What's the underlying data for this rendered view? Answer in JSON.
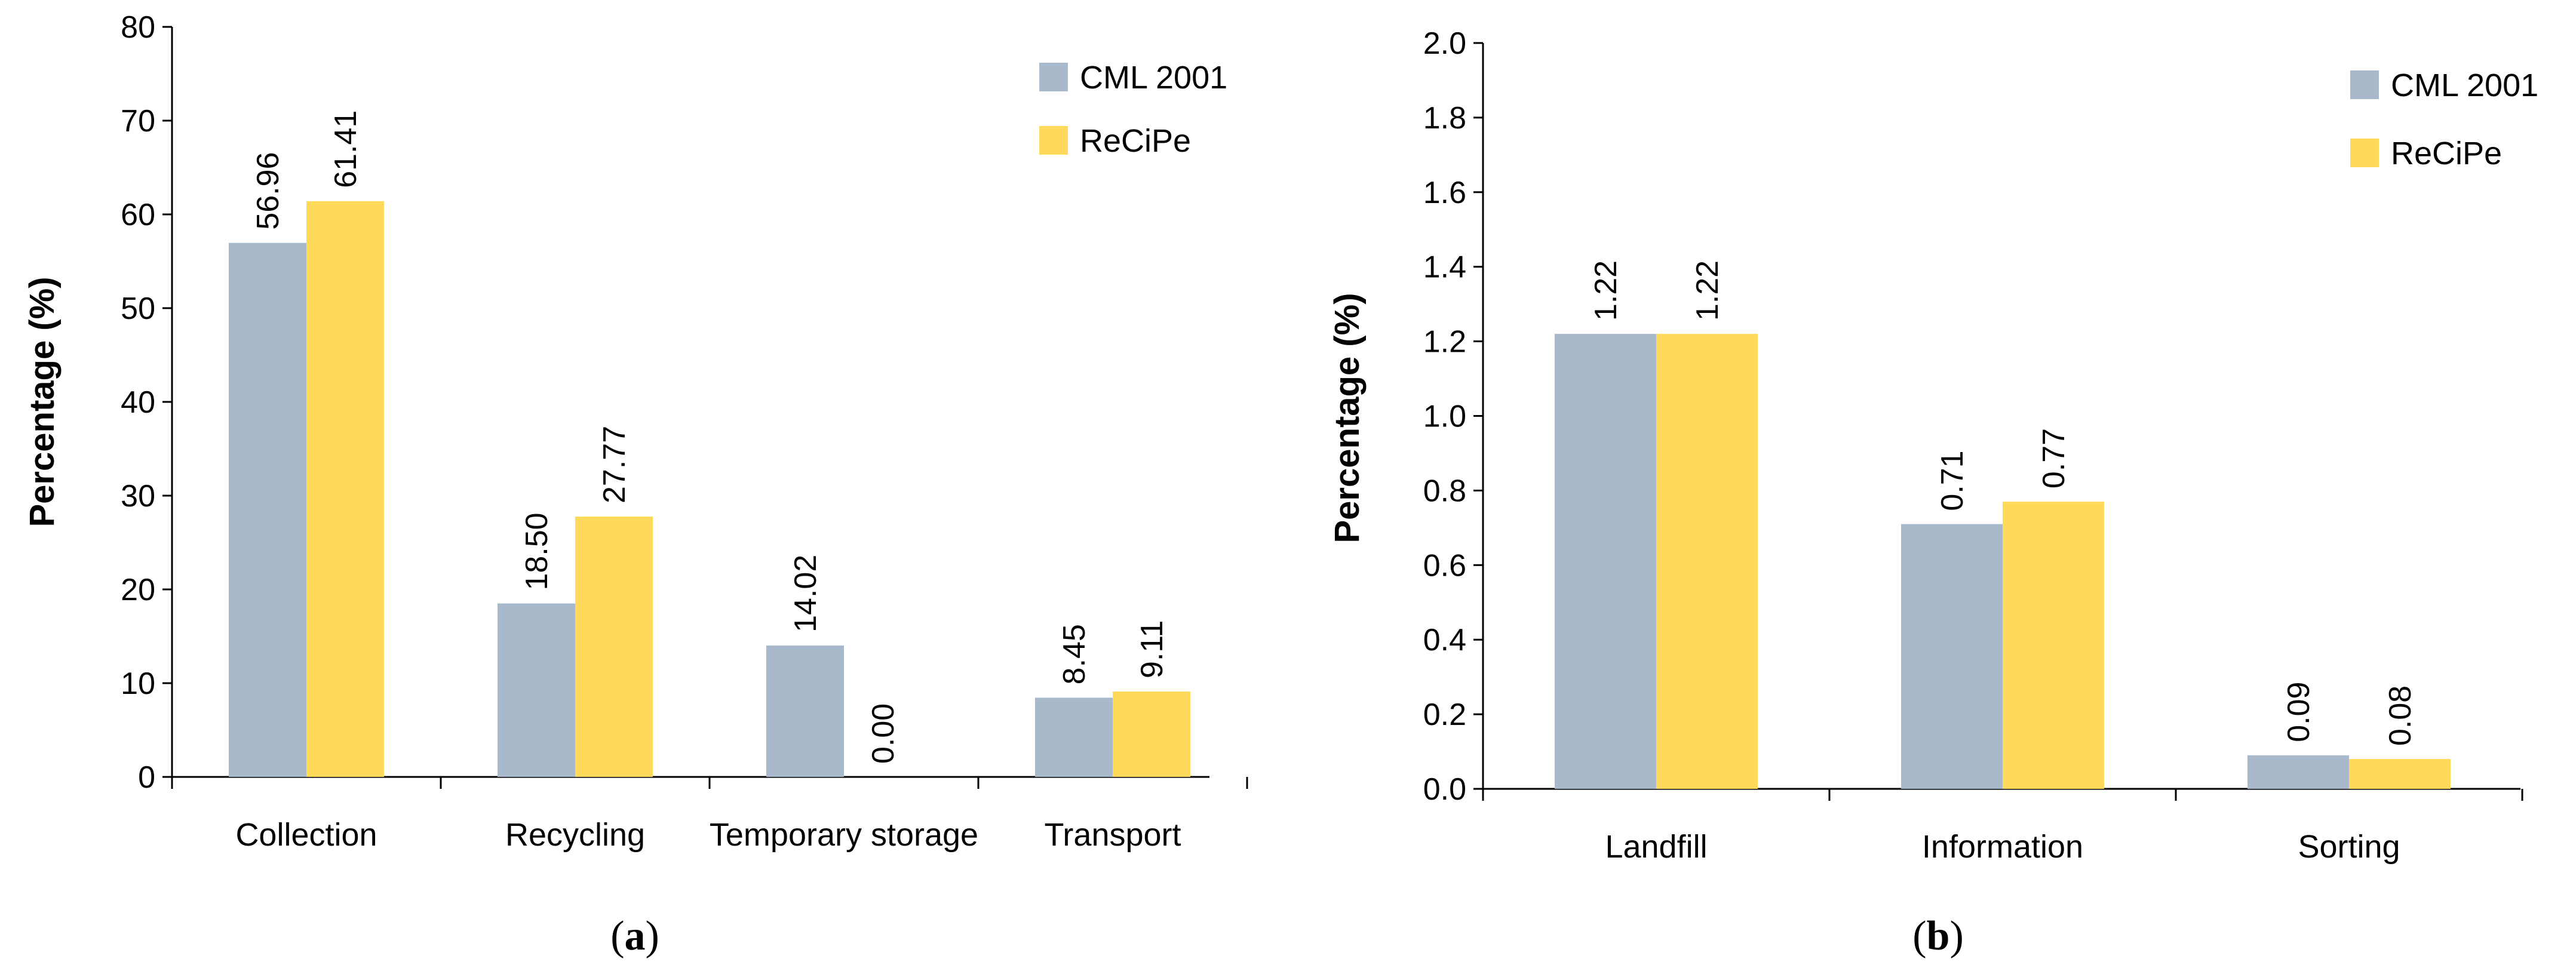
{
  "chart_data": [
    {
      "type": "bar",
      "panel_label": "a",
      "categories": [
        "Collection",
        "Recycling",
        "Temporary storage",
        "Transport"
      ],
      "series": [
        {
          "name": "CML 2001",
          "color": "#a9b9cc",
          "values": [
            56.96,
            18.5,
            14.02,
            8.45
          ],
          "labels": [
            "56.96",
            "18.50",
            "14.02",
            "8.45"
          ]
        },
        {
          "name": "ReCiPe",
          "color": "#ffd95a",
          "values": [
            61.41,
            27.77,
            0.0,
            9.11
          ],
          "labels": [
            "61.41",
            "27.77",
            "0.00",
            "9.11"
          ]
        }
      ],
      "ylabel": "Percentage (%)",
      "xlabel": "",
      "ylim": [
        0,
        80
      ],
      "yticks": [
        "0",
        "10",
        "20",
        "30",
        "40",
        "50",
        "60",
        "70",
        "80"
      ],
      "legend_position": "top-right"
    },
    {
      "type": "bar",
      "panel_label": "b",
      "categories": [
        "Landfill",
        "Information",
        "Sorting"
      ],
      "series": [
        {
          "name": "CML 2001",
          "color": "#a9b9cc",
          "values": [
            1.22,
            0.71,
            0.09
          ],
          "labels": [
            "1.22",
            "0.71",
            "0.09"
          ]
        },
        {
          "name": "ReCiPe",
          "color": "#ffd95a",
          "values": [
            1.22,
            0.77,
            0.08
          ],
          "labels": [
            "1.22",
            "0.77",
            "0.08"
          ]
        }
      ],
      "ylabel": "Percentage (%)",
      "xlabel": "",
      "ylim": [
        0,
        2.0
      ],
      "yticks": [
        "0.0",
        "0.2",
        "0.4",
        "0.6",
        "0.8",
        "1.0",
        "1.2",
        "1.4",
        "1.6",
        "1.8",
        "2.0"
      ],
      "legend_position": "top-right"
    }
  ]
}
